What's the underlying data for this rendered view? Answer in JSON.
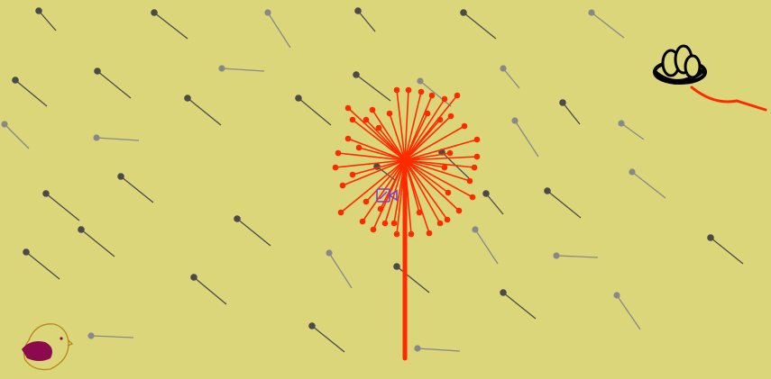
{
  "scene": {
    "background_color": "#dcd67b",
    "dandelion_color": "#ff2a00",
    "dark_seed_color": "#4a4a4a",
    "light_seed_color": "#888888",
    "bird_body_color": "#8b0a4e",
    "bird_outline_color": "#b8861f",
    "nest_color": "#000000",
    "camera_icon_color": "#7b3fc6"
  },
  "icons": {
    "nest": "nest-with-eggs-icon",
    "bird": "bird-icon",
    "camera": "video-camera-icon",
    "dandelion": "dandelion-plant"
  }
}
